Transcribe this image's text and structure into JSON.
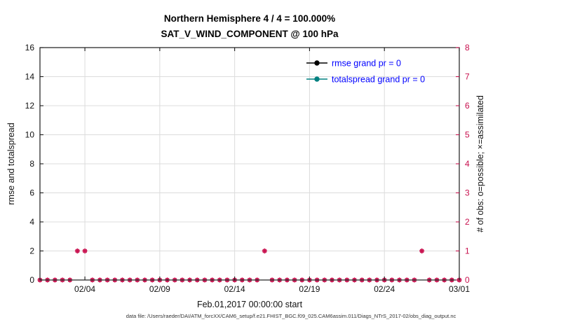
{
  "titles": {
    "line1": "Northern Hemisphere 4 / 4 = 100.000%",
    "line2": "SAT_V_WIND_COMPONENT @ 100 hPa"
  },
  "caption": {
    "text": "data file: /Users/raeder/DAI/ATM_forcXX/CAM6_setup/f.e21.FHIST_BGC.f09_025.CAM6assim.011/Diags_NTrS_2017-02/obs_diag_output.nc"
  },
  "colors": {
    "crimson": "#c8104e",
    "teal": "#008080",
    "legend_blue": "#0000ff",
    "grid": "#dcdcdc",
    "axis": "#1a1a1a",
    "rmse_black": "#000000"
  },
  "chart_data": {
    "type": "scatter",
    "title": "Northern Hemisphere 4 / 4 = 100.000%",
    "subtitle": "SAT_V_WIND_COMPONENT @ 100 hPa",
    "xlabel": "Feb.01,2017 00:00:00 start",
    "ylabel_left": "rmse and totalspread",
    "ylabel_right": "# of obs: o=possible; ×=assimilated",
    "x_range_days": [
      0,
      28
    ],
    "ylim_left": [
      0,
      16
    ],
    "ylim_right": [
      0,
      8
    ],
    "yticks_left": [
      0,
      2,
      4,
      6,
      8,
      10,
      12,
      14,
      16
    ],
    "yticks_right": [
      0,
      1,
      2,
      3,
      4,
      5,
      6,
      7,
      8
    ],
    "xticks": [
      {
        "day": 3,
        "label": "02/04"
      },
      {
        "day": 8,
        "label": "02/09"
      },
      {
        "day": 13,
        "label": "02/14"
      },
      {
        "day": 18,
        "label": "02/19"
      },
      {
        "day": 23,
        "label": "02/24"
      },
      {
        "day": 28,
        "label": "03/01"
      }
    ],
    "grid": true,
    "legend_position": "upper-right-inside",
    "legend": [
      {
        "label": "rmse grand pr = 0",
        "color": "#000000"
      },
      {
        "label": "totalspread grand pr = 0",
        "color": "#008080"
      }
    ],
    "series": [
      {
        "name": "rmse grand pr = 0",
        "color": "#000000",
        "values": []
      },
      {
        "name": "totalspread grand pr = 0",
        "color": "#008080",
        "values": []
      }
    ],
    "obs": {
      "note": "o (possible) and × (assimilated) markers coincide at every point; values on right axis",
      "marker_color": "#c8104e",
      "x_days": [
        0,
        0.5,
        1,
        1.5,
        2,
        2.5,
        3,
        3.5,
        4,
        4.5,
        5,
        5.5,
        6,
        6.5,
        7,
        7.5,
        8,
        8.5,
        9,
        9.5,
        10,
        10.5,
        11,
        11.5,
        12,
        12.5,
        13,
        13.5,
        14,
        14.5,
        15,
        15.5,
        16,
        16.5,
        17,
        17.5,
        18,
        18.5,
        19,
        19.5,
        20,
        20.5,
        21,
        21.5,
        22,
        22.5,
        23,
        23.5,
        24,
        24.5,
        25,
        25.5,
        26,
        26.5,
        27,
        27.5,
        28
      ],
      "values": [
        0,
        0,
        0,
        0,
        0,
        1,
        1,
        0,
        0,
        0,
        0,
        0,
        0,
        0,
        0,
        0,
        0,
        0,
        0,
        0,
        0,
        0,
        0,
        0,
        0,
        0,
        0,
        0,
        0,
        0,
        1,
        0,
        0,
        0,
        0,
        0,
        0,
        0,
        0,
        0,
        0,
        0,
        0,
        0,
        0,
        0,
        0,
        0,
        0,
        0,
        0,
        1,
        0,
        0,
        0,
        0,
        0
      ]
    }
  }
}
